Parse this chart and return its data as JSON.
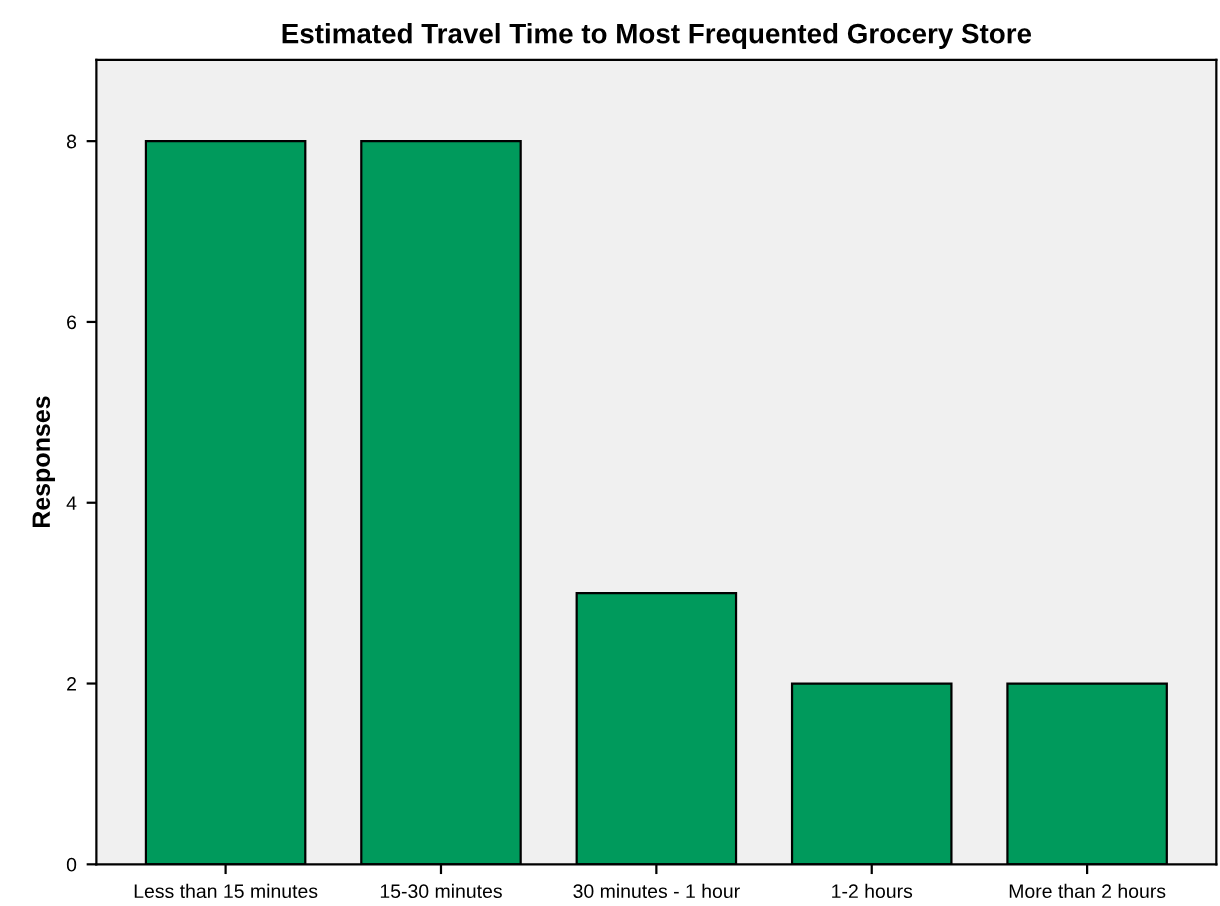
{
  "chart_data": {
    "type": "bar",
    "title": "Estimated Travel Time to Most Frequented Grocery Store",
    "ylabel": "Responses",
    "categories": [
      "Less than 15 minutes",
      "15-30 minutes",
      "30 minutes - 1 hour",
      "1-2 hours",
      "More than 2 hours"
    ],
    "values": [
      8,
      8,
      3,
      2,
      2
    ],
    "color": "#009a5c",
    "ylim": [
      0,
      8.9
    ],
    "yticks": [
      0,
      2,
      4,
      6,
      8
    ],
    "grid": false
  }
}
